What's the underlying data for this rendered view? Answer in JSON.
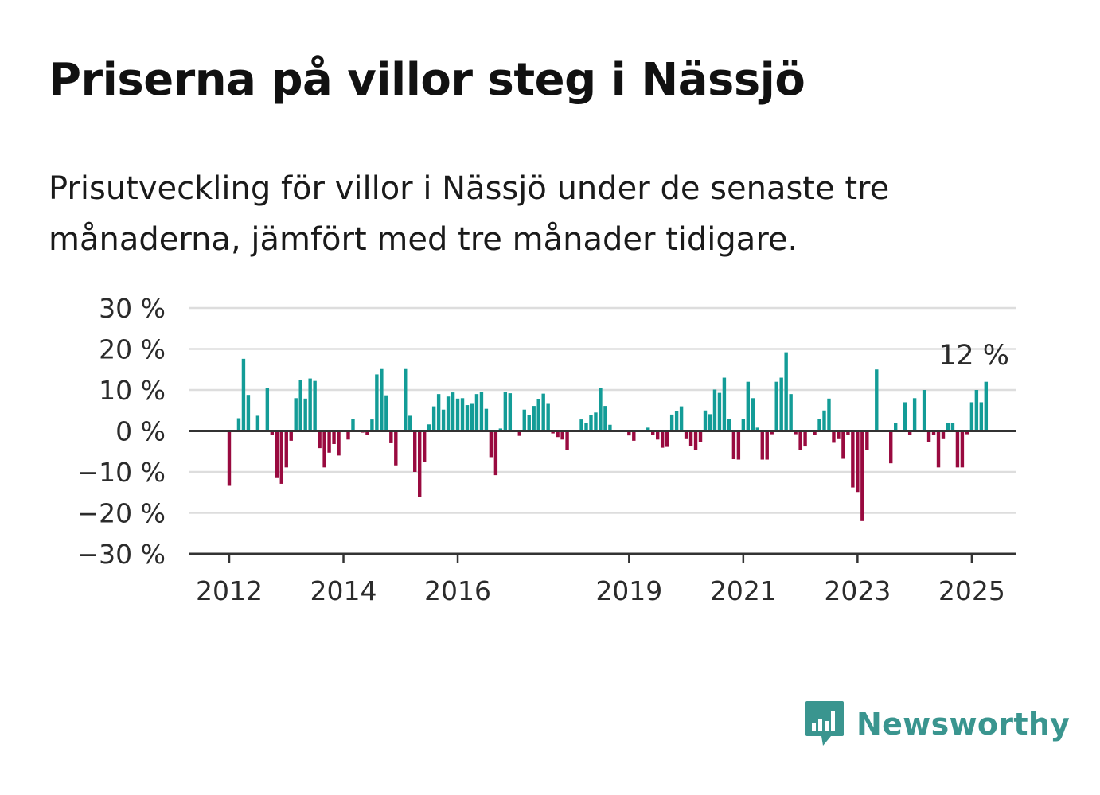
{
  "title": "Priserna på villor steg i Nässjö",
  "subtitle": "Prisutveckling för villor i Nässjö under de senaste tre månaderna, jämfört med tre månader tidigare.",
  "brand": {
    "name": "Newsworthy",
    "icon": "newsworthy-logo-icon"
  },
  "colors": {
    "positive": "#139c97",
    "negative": "#990a3f",
    "grid": "#dddddd",
    "axis": "#333333"
  },
  "chart_data": {
    "type": "bar",
    "ylim": [
      -30,
      30
    ],
    "yticks": [
      30,
      20,
      10,
      0,
      -10,
      -20,
      -30
    ],
    "ytick_labels": [
      "30 %",
      "20 %",
      "10 %",
      "0 %",
      "−10 %",
      "−20 %",
      "−30 %"
    ],
    "xticks": [
      {
        "label": "2012",
        "year": 2012
      },
      {
        "label": "2014",
        "year": 2014
      },
      {
        "label": "2016",
        "year": 2016
      },
      {
        "label": "2019",
        "year": 2019
      },
      {
        "label": "2021",
        "year": 2021
      },
      {
        "label": "2023",
        "year": 2023
      },
      {
        "label": "2025",
        "year": 2025
      }
    ],
    "xlabel": "",
    "ylabel": "",
    "grid": true,
    "last_value_label": "12 %",
    "series": [
      {
        "start": "2012-01",
        "frequency": "monthly",
        "values": [
          -13.4,
          0,
          3.1,
          17.6,
          8.8,
          0,
          3.7,
          0,
          10.5,
          -0.9,
          -11.5,
          -12.9,
          -8.9,
          -2.4,
          8.0,
          12.4,
          7.9,
          12.8,
          12.2,
          -4.2,
          -8.9,
          -5.3,
          -3.2,
          -6.0,
          0,
          -2.1,
          2.9,
          0,
          -0.4,
          -0.9,
          2.8,
          13.8,
          15.1,
          8.7,
          -3.0,
          -8.4,
          0,
          15.1,
          3.7,
          -10.0,
          -16.2,
          -7.6,
          1.6,
          6.0,
          9.0,
          5.2,
          8.4,
          9.4,
          7.9,
          8.0,
          6.3,
          6.6,
          9.0,
          9.5,
          5.4,
          -6.4,
          -10.8,
          0.6,
          9.5,
          9.2,
          0,
          -1.2,
          5.2,
          3.8,
          6.1,
          7.8,
          9.1,
          6.6,
          -0.6,
          -1.5,
          -2.1,
          -4.6,
          0,
          0,
          2.8,
          1.9,
          3.8,
          4.5,
          10.4,
          6.1,
          1.5,
          0,
          0,
          0,
          -1.1,
          -2.4,
          0,
          0,
          0.8,
          -0.9,
          -2.1,
          -4.1,
          -3.9,
          4.0,
          4.9,
          6.0,
          -2.0,
          -3.6,
          -4.7,
          -2.8,
          5.0,
          4.1,
          10.1,
          9.3,
          13.0,
          3.0,
          -6.9,
          -7.0,
          3.0,
          12.0,
          8.0,
          0.8,
          -7.0,
          -7.0,
          -0.8,
          12.0,
          13.0,
          19.2,
          9.0,
          -0.8,
          -4.6,
          -3.8,
          0,
          -0.9,
          3.0,
          5.0,
          7.9,
          -2.9,
          -2.0,
          -6.8,
          -1.0,
          -13.8,
          -14.9,
          -22.0,
          -4.7,
          0,
          15.0,
          0,
          0,
          -7.9,
          2.0,
          0,
          7.0,
          -0.9,
          8.0,
          0,
          10.0,
          -2.8,
          -1.0,
          -8.9,
          -2.0,
          2.0,
          2.0,
          -8.9,
          -8.9,
          -0.8,
          7.0,
          10.0,
          7.0,
          12.0
        ]
      }
    ]
  }
}
